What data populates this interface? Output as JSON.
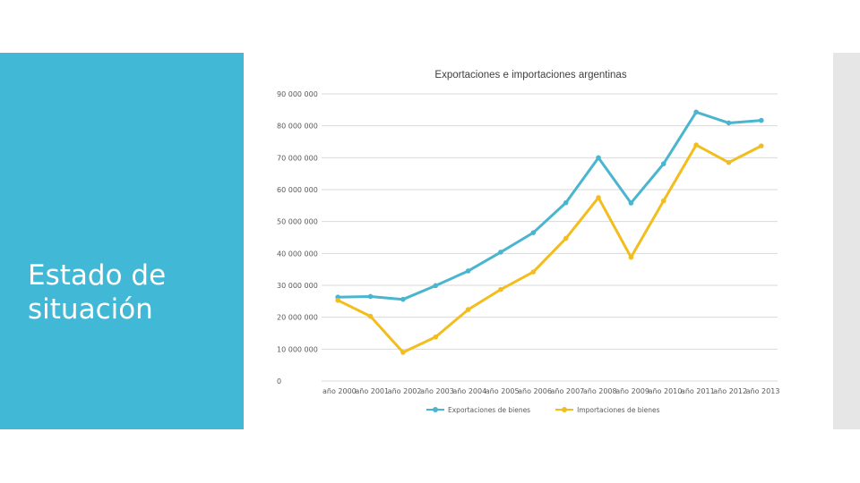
{
  "slide": {
    "title": "Estado de situación"
  },
  "colors": {
    "panel": "#41b8d5",
    "exports": "#4ab5cf",
    "imports": "#f2bd1d",
    "grid": "#d9d9d9"
  },
  "chart_data": {
    "type": "line",
    "title": "Exportaciones e importaciones argentinas",
    "categories": [
      "año 2000",
      "año 2001",
      "año 2002",
      "año 2003",
      "año 2004",
      "año 2005",
      "año 2006",
      "año 2007",
      "año 2008",
      "año 2009",
      "año 2010",
      "año 2011",
      "año 2012",
      "año 2013"
    ],
    "series": [
      {
        "name": "Exportaciones de bienes",
        "values": [
          26300000,
          26500000,
          25600000,
          29900000,
          34500000,
          40400000,
          46500000,
          55900000,
          70000000,
          55800000,
          68100000,
          84300000,
          80900000,
          81700000
        ]
      },
      {
        "name": "Importaciones de bienes",
        "values": [
          25300000,
          20300000,
          9000000,
          13800000,
          22400000,
          28700000,
          34200000,
          44700000,
          57500000,
          38800000,
          56500000,
          74000000,
          68500000,
          73700000
        ]
      }
    ],
    "y_ticks": [
      "0",
      "10 000 000",
      "20 000 000",
      "30 000 000",
      "40 000 000",
      "50 000 000",
      "60 000 000",
      "70 000 000",
      "80 000 000",
      "90 000 000"
    ],
    "ylim": [
      0,
      90000000
    ],
    "grid": true,
    "legend": "bottom"
  }
}
